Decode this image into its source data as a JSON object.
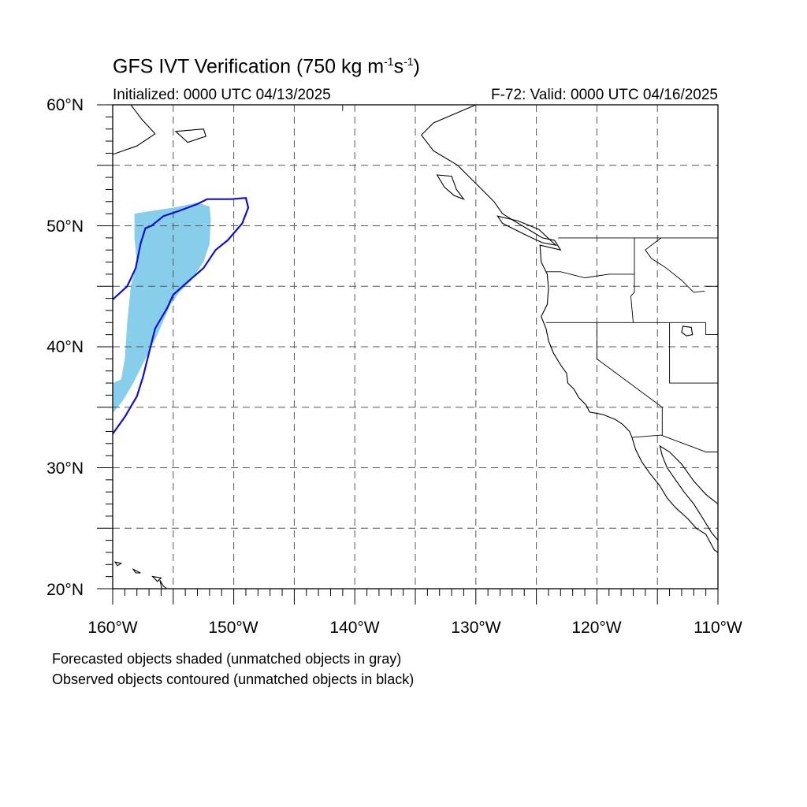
{
  "header": {
    "title_main": "GFS IVT Verification (750 kg m",
    "title_exp1": "-1",
    "title_mid": "s",
    "title_exp2": "-1",
    "title_end": ")",
    "initialized": "Initialized: 0000 UTC 04/13/2025",
    "valid": "F-72: Valid: 0000 UTC 04/16/2025"
  },
  "axes": {
    "lat_labels": [
      "60°N",
      "50°N",
      "40°N",
      "30°N",
      "20°N"
    ],
    "lon_labels": [
      "160°W",
      "150°W",
      "140°W",
      "130°W",
      "120°W",
      "110°W"
    ],
    "lat_range": [
      20,
      60
    ],
    "lon_range": [
      -160,
      -110
    ],
    "grid": "dashed, every 5 degrees"
  },
  "legend": {
    "line1": "Forecasted objects shaded (unmatched objects in gray)",
    "line2": "Observed objects contoured (unmatched objects in black)"
  },
  "colors": {
    "forecast_fill": "#87ceeb",
    "observed_contour": "#1010d0",
    "coastline": "#000000"
  },
  "map_data": {
    "forecast_object": [
      [
        -158.2,
        51.0
      ],
      [
        -157.0,
        51.2
      ],
      [
        -155.0,
        51.5
      ],
      [
        -153.0,
        51.9
      ],
      [
        -152.0,
        51.6
      ],
      [
        -151.9,
        50.5
      ],
      [
        -152.0,
        48.5
      ],
      [
        -152.5,
        47.0
      ],
      [
        -153.5,
        45.5
      ],
      [
        -154.5,
        44.5
      ],
      [
        -155.2,
        43.5
      ],
      [
        -155.8,
        42.2
      ],
      [
        -156.3,
        41.0
      ],
      [
        -156.8,
        40.0
      ],
      [
        -157.5,
        38.6
      ],
      [
        -158.3,
        37.0
      ],
      [
        -159.2,
        35.5
      ],
      [
        -160.0,
        34.5
      ],
      [
        -160.0,
        37.0
      ],
      [
        -159.3,
        37.3
      ],
      [
        -159.0,
        39.0
      ],
      [
        -158.8,
        42.0
      ],
      [
        -158.5,
        45.0
      ],
      [
        -158.0,
        47.0
      ],
      [
        -158.2,
        49.0
      ],
      [
        -158.2,
        51.0
      ]
    ],
    "observed_object": [
      [
        -160.0,
        43.9
      ],
      [
        -158.8,
        45.0
      ],
      [
        -158.1,
        46.5
      ],
      [
        -157.7,
        48.5
      ],
      [
        -157.3,
        49.8
      ],
      [
        -156.8,
        50.0
      ],
      [
        -155.8,
        50.8
      ],
      [
        -154.6,
        51.2
      ],
      [
        -153.0,
        51.8
      ],
      [
        -152.2,
        52.2
      ],
      [
        -150.2,
        52.2
      ],
      [
        -149.0,
        52.3
      ],
      [
        -148.8,
        51.5
      ],
      [
        -149.3,
        50.2
      ],
      [
        -150.5,
        48.8
      ],
      [
        -151.5,
        48.0
      ],
      [
        -152.5,
        46.5
      ],
      [
        -154.0,
        45.2
      ],
      [
        -155.0,
        44.3
      ],
      [
        -155.5,
        43.2
      ],
      [
        -156.5,
        41.5
      ],
      [
        -157.0,
        39.5
      ],
      [
        -157.5,
        37.5
      ],
      [
        -158.0,
        35.9
      ],
      [
        -159.0,
        34.2
      ],
      [
        -160.0,
        32.8
      ]
    ],
    "coastline_north_america": [
      [
        -130.0,
        60.0
      ],
      [
        -133.5,
        58.5
      ],
      [
        -134.5,
        57.5
      ],
      [
        -133.5,
        56.2
      ],
      [
        -131.5,
        55.0
      ],
      [
        -130.5,
        54.0
      ],
      [
        -129.5,
        53.0
      ],
      [
        -128.5,
        52.0
      ],
      [
        -127.8,
        51.0
      ],
      [
        -127.0,
        50.5
      ],
      [
        -125.5,
        49.6
      ],
      [
        -124.5,
        49.0
      ],
      [
        -123.5,
        48.8
      ],
      [
        -123.0,
        48.0
      ],
      [
        -124.7,
        48.4
      ],
      [
        -124.6,
        47.0
      ],
      [
        -124.1,
        46.0
      ],
      [
        -124.0,
        44.8
      ],
      [
        -124.1,
        43.5
      ],
      [
        -124.6,
        42.5
      ],
      [
        -124.2,
        41.5
      ],
      [
        -124.0,
        40.5
      ],
      [
        -123.6,
        39.5
      ],
      [
        -123.0,
        38.5
      ],
      [
        -122.5,
        37.8
      ],
      [
        -122.4,
        37.0
      ],
      [
        -121.9,
        36.5
      ],
      [
        -121.5,
        35.8
      ],
      [
        -120.9,
        35.2
      ],
      [
        -120.6,
        34.6
      ],
      [
        -119.5,
        34.4
      ],
      [
        -118.5,
        34.0
      ],
      [
        -117.9,
        33.6
      ],
      [
        -117.3,
        33.0
      ],
      [
        -117.1,
        32.5
      ],
      [
        -116.8,
        31.5
      ],
      [
        -116.3,
        30.5
      ],
      [
        -115.6,
        29.5
      ],
      [
        -114.8,
        28.5
      ],
      [
        -114.2,
        27.5
      ],
      [
        -113.5,
        26.7
      ],
      [
        -112.5,
        25.8
      ],
      [
        -111.8,
        25.0
      ],
      [
        -111.0,
        24.5
      ],
      [
        -110.3,
        23.2
      ],
      [
        -110.0,
        23.0
      ]
    ],
    "coastline_gulf_california": [
      [
        -110.0,
        27.0
      ],
      [
        -111.0,
        27.8
      ],
      [
        -112.0,
        28.9
      ],
      [
        -113.0,
        30.3
      ],
      [
        -114.0,
        31.3
      ],
      [
        -114.8,
        31.8
      ],
      [
        -114.6,
        31.0
      ],
      [
        -114.2,
        30.0
      ],
      [
        -113.5,
        29.0
      ],
      [
        -112.8,
        28.0
      ],
      [
        -112.0,
        27.0
      ],
      [
        -111.3,
        25.9
      ],
      [
        -110.5,
        24.6
      ],
      [
        -110.0,
        24.0
      ]
    ],
    "coastline_alaska": [
      [
        -160.0,
        55.9
      ],
      [
        -158.0,
        56.6
      ],
      [
        -156.5,
        57.6
      ],
      [
        -157.6,
        58.8
      ],
      [
        -158.2,
        59.6
      ],
      [
        -158.5,
        60.0
      ]
    ],
    "islands": [
      [
        [
          -133.2,
          54.2
        ],
        [
          -132.0,
          54.1
        ],
        [
          -131.6,
          53.0
        ],
        [
          -131.0,
          52.2
        ],
        [
          -131.8,
          52.5
        ],
        [
          -132.6,
          53.2
        ],
        [
          -133.2,
          54.2
        ]
      ],
      [
        [
          -128.2,
          50.8
        ],
        [
          -126.5,
          50.4
        ],
        [
          -124.8,
          49.7
        ],
        [
          -123.4,
          48.4
        ],
        [
          -124.5,
          48.6
        ],
        [
          -125.8,
          49.2
        ],
        [
          -127.8,
          50.2
        ],
        [
          -128.2,
          50.8
        ]
      ],
      [
        [
          -156.1,
          20.7
        ],
        [
          -155.8,
          20.2
        ],
        [
          -155.0,
          19.6
        ],
        [
          -155.3,
          19.2
        ],
        [
          -155.9,
          19.8
        ],
        [
          -156.1,
          20.7
        ]
      ],
      [
        [
          -156.7,
          21.0
        ],
        [
          -156.0,
          20.9
        ],
        [
          -156.3,
          20.6
        ],
        [
          -156.7,
          21.0
        ]
      ],
      [
        [
          -158.3,
          21.6
        ],
        [
          -157.7,
          21.3
        ],
        [
          -158.1,
          21.3
        ],
        [
          -158.3,
          21.6
        ]
      ],
      [
        [
          -159.8,
          22.2
        ],
        [
          -159.3,
          22.1
        ],
        [
          -159.6,
          21.9
        ],
        [
          -159.8,
          22.2
        ]
      ],
      [
        [
          -154.8,
          57.8
        ],
        [
          -152.5,
          58.0
        ],
        [
          -152.3,
          57.4
        ],
        [
          -153.8,
          56.9
        ],
        [
          -154.8,
          57.8
        ]
      ]
    ],
    "boundaries": [
      [
        [
          -123.2,
          49.0
        ],
        [
          -110.0,
          49.0
        ]
      ],
      [
        [
          -141.0,
          60.0
        ],
        [
          -141.0,
          59.5
        ]
      ],
      [
        [
          -124.2,
          46.2
        ],
        [
          -123.0,
          46.2
        ],
        [
          -121.0,
          45.7
        ],
        [
          -119.0,
          46.0
        ],
        [
          -116.9,
          46.0
        ]
      ],
      [
        [
          -116.9,
          49.0
        ],
        [
          -116.9,
          44.5
        ],
        [
          -117.2,
          44.2
        ],
        [
          -117.0,
          42.0
        ]
      ],
      [
        [
          -124.2,
          42.0
        ],
        [
          -111.0,
          42.0
        ]
      ],
      [
        [
          -120.0,
          42.0
        ],
        [
          -120.0,
          39.0
        ],
        [
          -114.6,
          35.0
        ],
        [
          -114.6,
          32.7
        ]
      ],
      [
        [
          -117.1,
          32.5
        ],
        [
          -114.7,
          32.7
        ],
        [
          -111.0,
          31.3
        ],
        [
          -108.2,
          31.3
        ]
      ],
      [
        [
          -114.0,
          42.0
        ],
        [
          -114.0,
          37.0
        ],
        [
          -110.0,
          37.0
        ]
      ],
      [
        [
          -111.0,
          45.0
        ],
        [
          -110.0,
          45.0
        ]
      ],
      [
        [
          -111.0,
          42.0
        ],
        [
          -111.0,
          41.0
        ],
        [
          -110.0,
          41.0
        ]
      ],
      [
        [
          -114.7,
          49.0
        ],
        [
          -116.0,
          48.0
        ],
        [
          -115.5,
          47.3
        ],
        [
          -114.4,
          46.6
        ],
        [
          -113.0,
          45.5
        ],
        [
          -112.0,
          44.5
        ],
        [
          -111.1,
          44.6
        ]
      ]
    ],
    "lakes": [
      [
        [
          -112.9,
          41.7
        ],
        [
          -112.2,
          41.6
        ],
        [
          -112.1,
          41.0
        ],
        [
          -112.6,
          40.9
        ],
        [
          -113.0,
          41.2
        ],
        [
          -112.9,
          41.7
        ]
      ]
    ]
  }
}
